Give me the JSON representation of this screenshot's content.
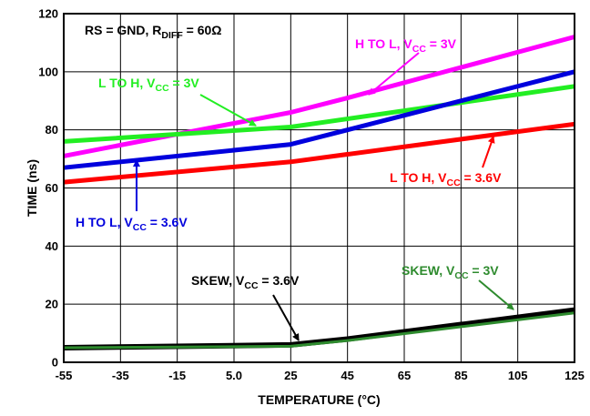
{
  "chart_data": {
    "type": "line",
    "xlabel": "TEMPERATURE (°C)",
    "ylabel": "TIME (ns)",
    "xlim": [
      -55,
      125
    ],
    "ylim": [
      0,
      120
    ],
    "x_ticks": [
      "-55",
      "-35",
      "-15",
      "5.0",
      "25",
      "45",
      "65",
      "85",
      "105",
      "125"
    ],
    "y_ticks": [
      "0",
      "20",
      "40",
      "60",
      "80",
      "100",
      "120"
    ],
    "grid": true,
    "condition": {
      "text": "RS = GND, R",
      "sub": "DIFF",
      "tail": " = 60Ω"
    },
    "series": [
      {
        "name": "H TO L, VCC = 3V",
        "color": "#ff00ff",
        "x": [
          -55,
          25,
          45,
          125
        ],
        "y": [
          71,
          86,
          91,
          112
        ],
        "label": {
          "text": "H TO L, V",
          "sub": "CC",
          "tail": " = 3V"
        }
      },
      {
        "name": "L TO H, VCC = 3V",
        "color": "#22ee22",
        "x": [
          -55,
          25,
          125
        ],
        "y": [
          76,
          81,
          95
        ],
        "label": {
          "text": "L TO H, V",
          "sub": "CC",
          "tail": " = 3V"
        }
      },
      {
        "name": "H TO L, VCC = 3.6V",
        "color": "#0000dd",
        "x": [
          -55,
          25,
          45,
          125
        ],
        "y": [
          67,
          75,
          80,
          100
        ],
        "label": {
          "text": "H TO L, V",
          "sub": "CC",
          "tail": " = 3.6V"
        }
      },
      {
        "name": "L TO H, VCC = 3.6V",
        "color": "#ff0000",
        "x": [
          -55,
          25,
          125
        ],
        "y": [
          62,
          69,
          82
        ],
        "label": {
          "text": "L TO H, V",
          "sub": "CC",
          "tail": " = 3.6V"
        }
      },
      {
        "name": "SKEW, VCC = 3.6V",
        "color": "#000000",
        "x": [
          -55,
          25,
          45,
          125
        ],
        "y": [
          5,
          6,
          8,
          18
        ],
        "label": {
          "text": "SKEW, V",
          "sub": "CC",
          "tail": " = 3.6V"
        }
      },
      {
        "name": "SKEW, VCC = 3V",
        "color": "#2e8b2e",
        "x": [
          -55,
          25,
          45,
          125
        ],
        "y": [
          5,
          5.5,
          7.5,
          17
        ],
        "label": {
          "text": "SKEW, V",
          "sub": "CC",
          "tail": " = 3V"
        }
      }
    ]
  }
}
